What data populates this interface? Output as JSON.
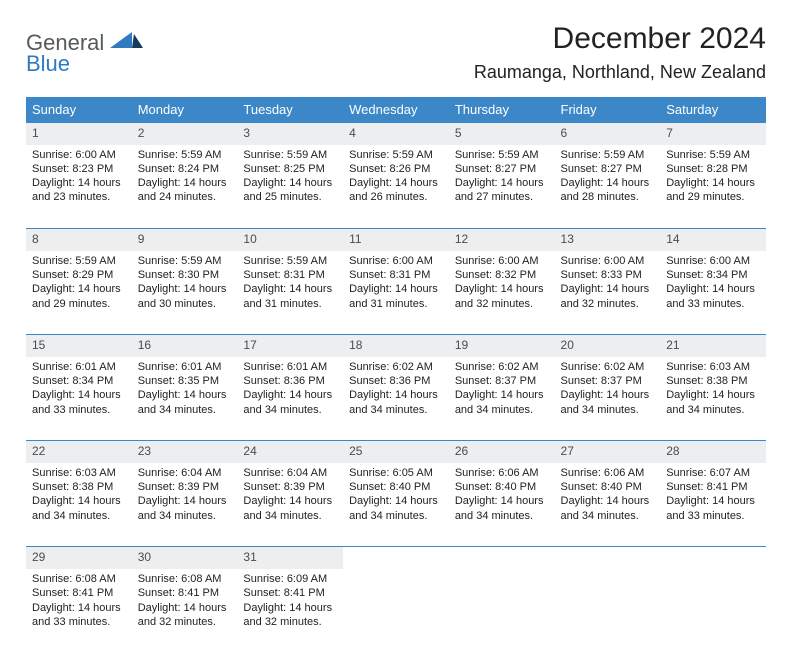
{
  "logo": {
    "line1": "General",
    "line2": "Blue"
  },
  "header": {
    "title": "December 2024",
    "location": "Raumanga, Northland, New Zealand"
  },
  "styling": {
    "header_bg": "#3b87c8",
    "header_fg": "#ffffff",
    "daynum_bg": "#eceeef",
    "daynum_fg": "#4a4c4e",
    "body_bg": "#ffffff",
    "title_fontsize": 30,
    "location_fontsize": 18,
    "cell_fontsize": 11,
    "columns": 7
  },
  "weekdays": [
    "Sunday",
    "Monday",
    "Tuesday",
    "Wednesday",
    "Thursday",
    "Friday",
    "Saturday"
  ],
  "weeks": [
    [
      {
        "day": "1",
        "sunrise": "Sunrise: 6:00 AM",
        "sunset": "Sunset: 8:23 PM",
        "daylight": "Daylight: 14 hours and 23 minutes."
      },
      {
        "day": "2",
        "sunrise": "Sunrise: 5:59 AM",
        "sunset": "Sunset: 8:24 PM",
        "daylight": "Daylight: 14 hours and 24 minutes."
      },
      {
        "day": "3",
        "sunrise": "Sunrise: 5:59 AM",
        "sunset": "Sunset: 8:25 PM",
        "daylight": "Daylight: 14 hours and 25 minutes."
      },
      {
        "day": "4",
        "sunrise": "Sunrise: 5:59 AM",
        "sunset": "Sunset: 8:26 PM",
        "daylight": "Daylight: 14 hours and 26 minutes."
      },
      {
        "day": "5",
        "sunrise": "Sunrise: 5:59 AM",
        "sunset": "Sunset: 8:27 PM",
        "daylight": "Daylight: 14 hours and 27 minutes."
      },
      {
        "day": "6",
        "sunrise": "Sunrise: 5:59 AM",
        "sunset": "Sunset: 8:27 PM",
        "daylight": "Daylight: 14 hours and 28 minutes."
      },
      {
        "day": "7",
        "sunrise": "Sunrise: 5:59 AM",
        "sunset": "Sunset: 8:28 PM",
        "daylight": "Daylight: 14 hours and 29 minutes."
      }
    ],
    [
      {
        "day": "8",
        "sunrise": "Sunrise: 5:59 AM",
        "sunset": "Sunset: 8:29 PM",
        "daylight": "Daylight: 14 hours and 29 minutes."
      },
      {
        "day": "9",
        "sunrise": "Sunrise: 5:59 AM",
        "sunset": "Sunset: 8:30 PM",
        "daylight": "Daylight: 14 hours and 30 minutes."
      },
      {
        "day": "10",
        "sunrise": "Sunrise: 5:59 AM",
        "sunset": "Sunset: 8:31 PM",
        "daylight": "Daylight: 14 hours and 31 minutes."
      },
      {
        "day": "11",
        "sunrise": "Sunrise: 6:00 AM",
        "sunset": "Sunset: 8:31 PM",
        "daylight": "Daylight: 14 hours and 31 minutes."
      },
      {
        "day": "12",
        "sunrise": "Sunrise: 6:00 AM",
        "sunset": "Sunset: 8:32 PM",
        "daylight": "Daylight: 14 hours and 32 minutes."
      },
      {
        "day": "13",
        "sunrise": "Sunrise: 6:00 AM",
        "sunset": "Sunset: 8:33 PM",
        "daylight": "Daylight: 14 hours and 32 minutes."
      },
      {
        "day": "14",
        "sunrise": "Sunrise: 6:00 AM",
        "sunset": "Sunset: 8:34 PM",
        "daylight": "Daylight: 14 hours and 33 minutes."
      }
    ],
    [
      {
        "day": "15",
        "sunrise": "Sunrise: 6:01 AM",
        "sunset": "Sunset: 8:34 PM",
        "daylight": "Daylight: 14 hours and 33 minutes."
      },
      {
        "day": "16",
        "sunrise": "Sunrise: 6:01 AM",
        "sunset": "Sunset: 8:35 PM",
        "daylight": "Daylight: 14 hours and 34 minutes."
      },
      {
        "day": "17",
        "sunrise": "Sunrise: 6:01 AM",
        "sunset": "Sunset: 8:36 PM",
        "daylight": "Daylight: 14 hours and 34 minutes."
      },
      {
        "day": "18",
        "sunrise": "Sunrise: 6:02 AM",
        "sunset": "Sunset: 8:36 PM",
        "daylight": "Daylight: 14 hours and 34 minutes."
      },
      {
        "day": "19",
        "sunrise": "Sunrise: 6:02 AM",
        "sunset": "Sunset: 8:37 PM",
        "daylight": "Daylight: 14 hours and 34 minutes."
      },
      {
        "day": "20",
        "sunrise": "Sunrise: 6:02 AM",
        "sunset": "Sunset: 8:37 PM",
        "daylight": "Daylight: 14 hours and 34 minutes."
      },
      {
        "day": "21",
        "sunrise": "Sunrise: 6:03 AM",
        "sunset": "Sunset: 8:38 PM",
        "daylight": "Daylight: 14 hours and 34 minutes."
      }
    ],
    [
      {
        "day": "22",
        "sunrise": "Sunrise: 6:03 AM",
        "sunset": "Sunset: 8:38 PM",
        "daylight": "Daylight: 14 hours and 34 minutes."
      },
      {
        "day": "23",
        "sunrise": "Sunrise: 6:04 AM",
        "sunset": "Sunset: 8:39 PM",
        "daylight": "Daylight: 14 hours and 34 minutes."
      },
      {
        "day": "24",
        "sunrise": "Sunrise: 6:04 AM",
        "sunset": "Sunset: 8:39 PM",
        "daylight": "Daylight: 14 hours and 34 minutes."
      },
      {
        "day": "25",
        "sunrise": "Sunrise: 6:05 AM",
        "sunset": "Sunset: 8:40 PM",
        "daylight": "Daylight: 14 hours and 34 minutes."
      },
      {
        "day": "26",
        "sunrise": "Sunrise: 6:06 AM",
        "sunset": "Sunset: 8:40 PM",
        "daylight": "Daylight: 14 hours and 34 minutes."
      },
      {
        "day": "27",
        "sunrise": "Sunrise: 6:06 AM",
        "sunset": "Sunset: 8:40 PM",
        "daylight": "Daylight: 14 hours and 34 minutes."
      },
      {
        "day": "28",
        "sunrise": "Sunrise: 6:07 AM",
        "sunset": "Sunset: 8:41 PM",
        "daylight": "Daylight: 14 hours and 33 minutes."
      }
    ],
    [
      {
        "day": "29",
        "sunrise": "Sunrise: 6:08 AM",
        "sunset": "Sunset: 8:41 PM",
        "daylight": "Daylight: 14 hours and 33 minutes."
      },
      {
        "day": "30",
        "sunrise": "Sunrise: 6:08 AM",
        "sunset": "Sunset: 8:41 PM",
        "daylight": "Daylight: 14 hours and 32 minutes."
      },
      {
        "day": "31",
        "sunrise": "Sunrise: 6:09 AM",
        "sunset": "Sunset: 8:41 PM",
        "daylight": "Daylight: 14 hours and 32 minutes."
      },
      null,
      null,
      null,
      null
    ]
  ]
}
